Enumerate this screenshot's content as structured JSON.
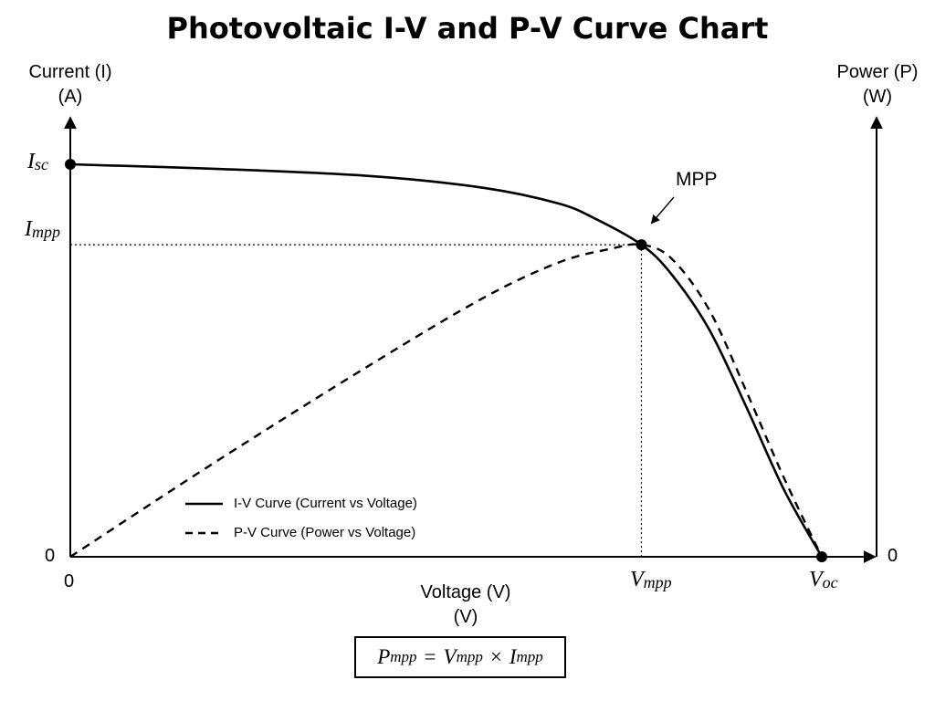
{
  "chart_data": {
    "type": "line",
    "title": "Photovoltaic I-V and P-V Curve Chart",
    "left_axis_label_line1": "Current (I)",
    "left_axis_label_line2": "(A)",
    "right_axis_label_line1": "Power (P)",
    "right_axis_label_line2": "(W)",
    "x_axis_label_line1": "Voltage (V)",
    "x_axis_label_line2": "(V)",
    "left_zero_label": "0",
    "right_zero_label": "0",
    "x_zero_label": "0",
    "symbols": {
      "isc": {
        "main": "I",
        "sub": "sc"
      },
      "impp": {
        "main": "I",
        "sub": "mpp"
      },
      "vmpp": {
        "main": "V",
        "sub": "mpp"
      },
      "voc": {
        "main": "V",
        "sub": "oc"
      }
    },
    "x_normalized_domain": [
      0,
      1
    ],
    "y_normalized_domain": [
      0,
      1
    ],
    "series": [
      {
        "name": "I-V Curve (Current vs Voltage)",
        "style": "solid",
        "points": [
          [
            0,
            1.0
          ],
          [
            0.2,
            0.988
          ],
          [
            0.4,
            0.97
          ],
          [
            0.55,
            0.94
          ],
          [
            0.65,
            0.9
          ],
          [
            0.7,
            0.86
          ],
          [
            0.76,
            0.795
          ],
          [
            0.8,
            0.72
          ],
          [
            0.85,
            0.58
          ],
          [
            0.9,
            0.38
          ],
          [
            0.95,
            0.17
          ],
          [
            1.0,
            0
          ]
        ]
      },
      {
        "name": "P-V Curve (Power vs Voltage)",
        "style": "dashed",
        "points": [
          [
            0,
            0
          ],
          [
            0.2,
            0.25
          ],
          [
            0.4,
            0.49
          ],
          [
            0.55,
            0.66
          ],
          [
            0.65,
            0.75
          ],
          [
            0.72,
            0.785
          ],
          [
            0.76,
            0.795
          ],
          [
            0.8,
            0.76
          ],
          [
            0.85,
            0.63
          ],
          [
            0.9,
            0.42
          ],
          [
            0.95,
            0.2
          ],
          [
            1.0,
            0
          ]
        ]
      }
    ],
    "key_points": [
      {
        "name": "Isc",
        "x": 0,
        "y": 1.0
      },
      {
        "name": "MPP",
        "x": 0.76,
        "y": 0.795
      },
      {
        "name": "Voc",
        "x": 1.0,
        "y": 0
      }
    ],
    "annotation": "MPP",
    "formula": {
      "p": "P",
      "p_sub": "mpp",
      "eq": "=",
      "v": "V",
      "v_sub": "mpp",
      "times": "×",
      "i": "I",
      "i_sub": "mpp"
    },
    "legend_placement": "bottom-left",
    "grid": false
  }
}
